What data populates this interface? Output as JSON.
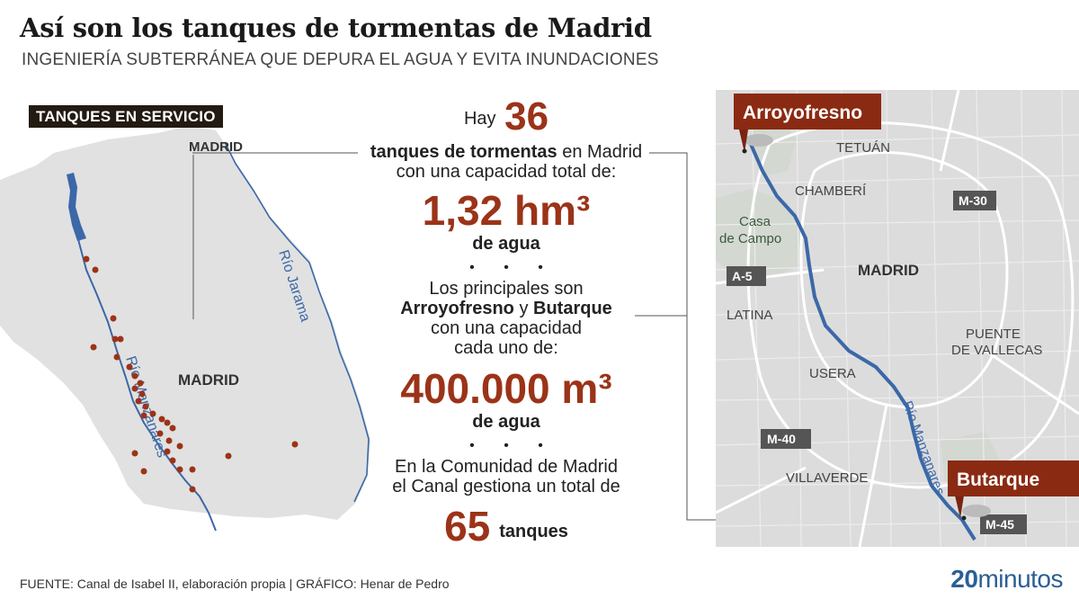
{
  "title": "Así son los tanques de tormentas de Madrid",
  "subtitle": "INGENIERÍA SUBTERRÁNEA QUE DEPURA EL AGUA Y EVITA INUNDACIONES",
  "left_map": {
    "badge": "TANQUES EN SERVICIO",
    "labels": {
      "madrid_region": "MADRID",
      "madrid_city": "MADRID",
      "rio_manzanares": "Río Manzanares",
      "rio_jarama": "Río Jarama"
    },
    "colors": {
      "region": "#e1e1e1",
      "river": "#3b68a8",
      "tank": "#9b3318"
    }
  },
  "center_text": {
    "hay": "Hay",
    "num_tanques": "36",
    "line_tanques_bold": "tanques de tormentas",
    "line_tanques_rest": " en Madrid",
    "line_capacidad": "con una capacidad total de:",
    "capacidad_total": "1,32 hm³",
    "de_agua_1": "de agua",
    "dots_1": "• • •",
    "principales": "Los principales son",
    "name_1": "Arroyofresno",
    "y": " y ",
    "name_2": "Butarque",
    "con_capacidad": "con una capacidad",
    "cada_uno": "cada uno de:",
    "capacidad_unit": "400.000 m³",
    "de_agua_2": "de agua",
    "dots_2": "• • •",
    "comunidad": "En la Comunidad de Madrid",
    "canal": "el Canal gestiona un total de",
    "total_65": "65",
    "tanques": "tanques",
    "accent_color": "#9b3318"
  },
  "right_map": {
    "pins": {
      "arroyofresno": "Arroyofresno",
      "butarque": "Butarque"
    },
    "districts": {
      "tetuan": "TETUÁN",
      "chamberi": "CHAMBERÍ",
      "casa": "Casa",
      "de_campo": "de Campo",
      "madrid": "MADRID",
      "latina": "LATINA",
      "puente": "PUENTE",
      "de_vallecas": "DE VALLECAS",
      "usera": "USERA",
      "villaverde": "VILLAVERDE"
    },
    "roads": {
      "m30": "M-30",
      "a5": "A-5",
      "m40": "M-40",
      "m45": "M-45"
    },
    "river": "Río Manzanares",
    "colors": {
      "pin": "#8b2a12",
      "road_badge": "#555555",
      "river": "#3b68a8"
    }
  },
  "footer": {
    "source": "FUENTE: Canal de Isabel II, elaboración propia  |  GRÁFICO: Henar de Pedro"
  },
  "logo": {
    "number": "20",
    "word": "minutos"
  }
}
